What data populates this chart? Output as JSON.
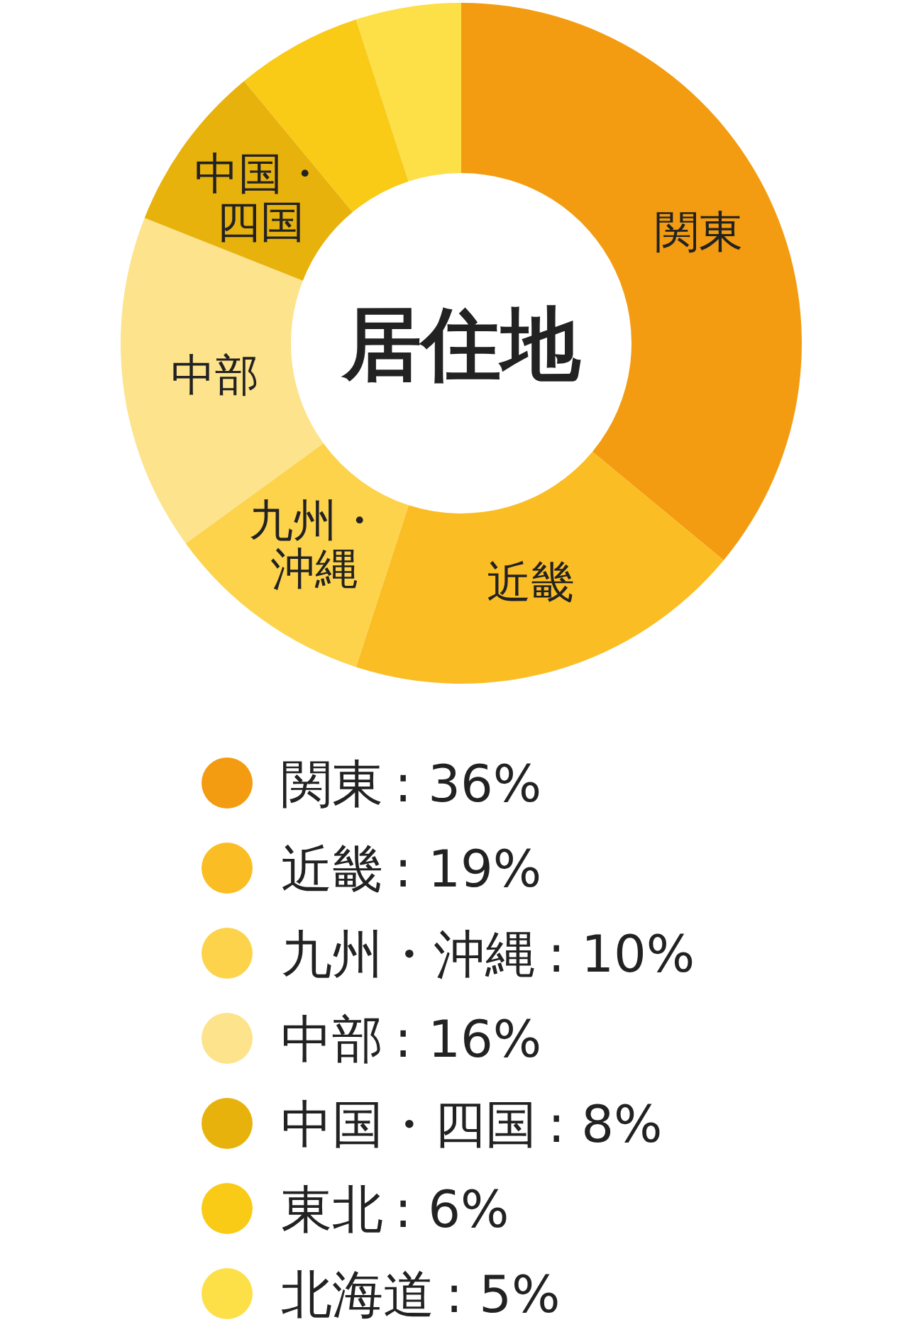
{
  "chart_data": {
    "type": "donut",
    "title": "居住地",
    "categories": [
      "関東",
      "近畿",
      "九州・沖縄",
      "中部",
      "中国・四国",
      "東北",
      "北海道"
    ],
    "values": [
      36,
      19,
      10,
      16,
      8,
      6,
      5
    ],
    "colors": [
      "#f39c11",
      "#fbbd24",
      "#fdd34c",
      "#fde38b",
      "#e8b20c",
      "#f9ca16",
      "#fddf48"
    ],
    "value_labels": [
      ": 36%",
      ": 19%",
      ": 10%",
      ": 16%",
      ": 8%",
      ": 6%",
      ": 5%"
    ],
    "legend": "bottom"
  }
}
